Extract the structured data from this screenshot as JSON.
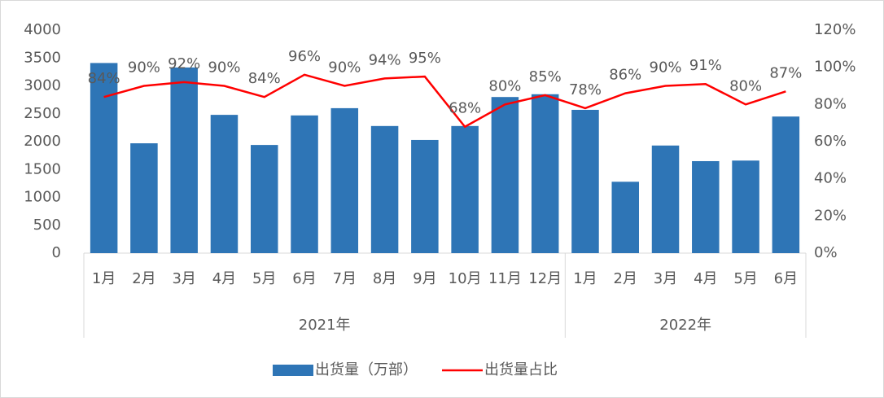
{
  "chart_data": {
    "type": "bar_line",
    "groups": [
      {
        "name": "2021年",
        "categories": [
          "1月",
          "2月",
          "3月",
          "4月",
          "5月",
          "6月",
          "7月",
          "8月",
          "9月",
          "10月",
          "11月",
          "12月"
        ]
      },
      {
        "name": "2022年",
        "categories": [
          "1月",
          "2月",
          "3月",
          "4月",
          "5月",
          "6月"
        ]
      }
    ],
    "series": [
      {
        "name": "出货量（万部）",
        "type": "bar",
        "color": "#2e75b6",
        "values": [
          3410,
          1970,
          3330,
          2480,
          1940,
          2470,
          2600,
          2280,
          2030,
          2280,
          2800,
          2850,
          2570,
          1280,
          1930,
          1650,
          1660,
          2450
        ]
      },
      {
        "name": "出货量占比",
        "type": "line",
        "axis": "y2",
        "color": "#ff0000",
        "values": [
          84,
          90,
          92,
          90,
          84,
          96,
          90,
          94,
          95,
          68,
          80,
          85,
          78,
          86,
          90,
          91,
          80,
          87
        ],
        "value_labels": [
          "84%",
          "90%",
          "92%",
          "90%",
          "84%",
          "96%",
          "90%",
          "94%",
          "95%",
          "68%",
          "80%",
          "85%",
          "78%",
          "86%",
          "90%",
          "91%",
          "80%",
          "87%"
        ]
      }
    ],
    "ylim": [
      0,
      4000
    ],
    "yticks": [
      0,
      500,
      1000,
      1500,
      2000,
      2500,
      3000,
      3500,
      4000
    ],
    "y2lim": [
      0,
      120
    ],
    "y2ticks": [
      {
        "value": 0,
        "label": "0%"
      },
      {
        "value": 20,
        "label": "20%"
      },
      {
        "value": 40,
        "label": "40%"
      },
      {
        "value": 60,
        "label": "60%"
      },
      {
        "value": 80,
        "label": "80%"
      },
      {
        "value": 100,
        "label": "100%"
      },
      {
        "value": 120,
        "label": "120%"
      }
    ],
    "legend": "bottom"
  }
}
